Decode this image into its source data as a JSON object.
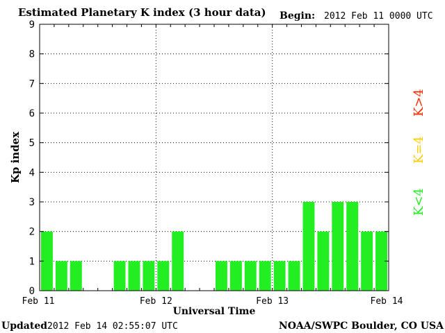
{
  "chart_data": {
    "type": "bar",
    "title": "Estimated Planetary K index (3 hour data)",
    "begin_label": "Begin:",
    "begin_value": "2012 Feb 11 0000 UTC",
    "xlabel": "Universal Time",
    "ylabel": "Kp index",
    "ylim": [
      0,
      9
    ],
    "yticks": [
      "0",
      "1",
      "2",
      "3",
      "4",
      "5",
      "6",
      "7",
      "8",
      "9"
    ],
    "x_tick_labels": [
      "Feb 11",
      "Feb 12",
      "Feb 13",
      "Feb 14"
    ],
    "grid": true,
    "interval_hours": 3,
    "values": [
      2,
      1,
      1,
      0,
      0,
      1,
      1,
      1,
      1,
      2,
      0,
      0,
      1,
      1,
      1,
      1,
      1,
      1,
      3,
      2,
      3,
      3,
      2,
      2
    ],
    "legend": [
      {
        "label": "K>4",
        "color": "#ff2a00"
      },
      {
        "label": "K=4",
        "color": "#ffcc00"
      },
      {
        "label": "K<4",
        "color": "#22ee22"
      }
    ],
    "bar_color": "#22ee22"
  },
  "footer": {
    "updated_label": "Updated",
    "updated_value": "2012 Feb 14 02:55:07 UTC",
    "source": "NOAA/SWPC Boulder, CO USA"
  }
}
